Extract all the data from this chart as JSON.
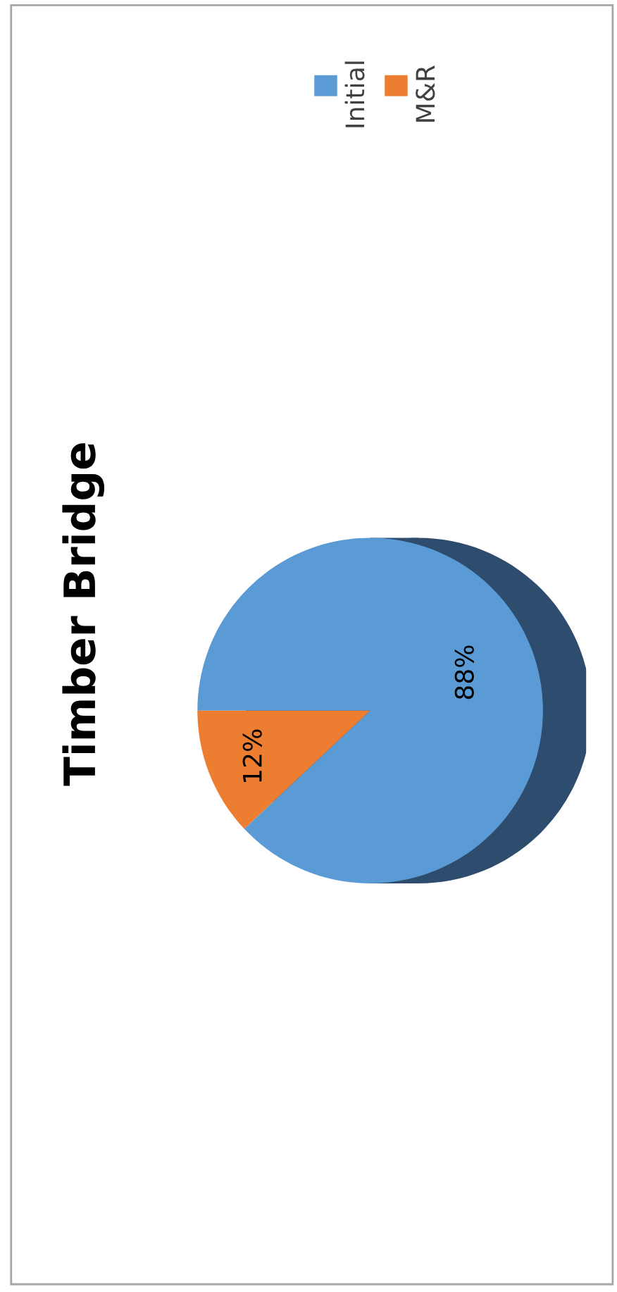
{
  "chart_data": {
    "type": "pie",
    "title": "Timber Bridge",
    "categories": [
      "Initial",
      "M&R"
    ],
    "values": [
      88,
      12
    ],
    "colors": [
      "#5b9bd5",
      "#ed7d31"
    ],
    "value_labels": [
      "88%",
      "12%"
    ],
    "legend": "top right"
  }
}
